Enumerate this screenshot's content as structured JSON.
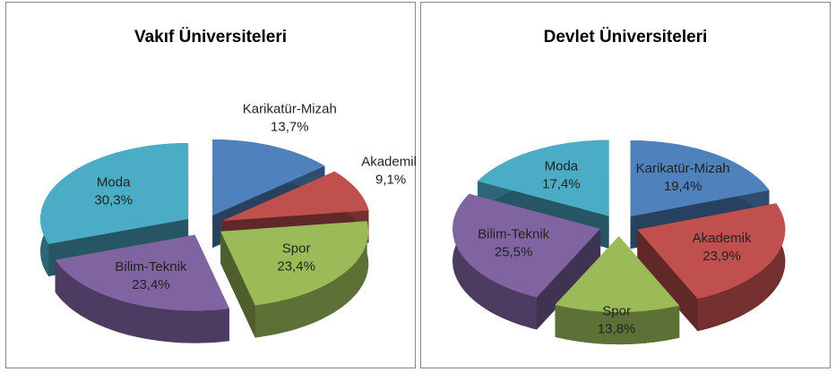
{
  "chart_data": [
    {
      "type": "pie",
      "title": "Vakıf Üniversiteleri",
      "categories": [
        "Karikatür-Mizah",
        "Akademik",
        "Spor",
        "Bilim-Teknik",
        "Moda"
      ],
      "values": [
        13.7,
        9.1,
        23.4,
        23.4,
        30.3
      ],
      "value_labels": [
        "13,7%",
        "9,1%",
        "23,4%",
        "23,4%",
        "30,3%"
      ],
      "colors": [
        "#4f81bd",
        "#c0504d",
        "#9bbb59",
        "#8064a2",
        "#4bacc6"
      ]
    },
    {
      "type": "pie",
      "title": "Devlet Üniversiteleri",
      "categories": [
        "Karikatür-Mizah",
        "Akademik",
        "Spor",
        "Bilim-Teknik",
        "Moda"
      ],
      "values": [
        19.4,
        23.9,
        13.8,
        25.5,
        17.4
      ],
      "value_labels": [
        "19,4%",
        "23,9%",
        "13,8%",
        "25,5%",
        "17,4%"
      ],
      "colors": [
        "#4f81bd",
        "#c0504d",
        "#9bbb59",
        "#8064a2",
        "#4bacc6"
      ]
    }
  ]
}
